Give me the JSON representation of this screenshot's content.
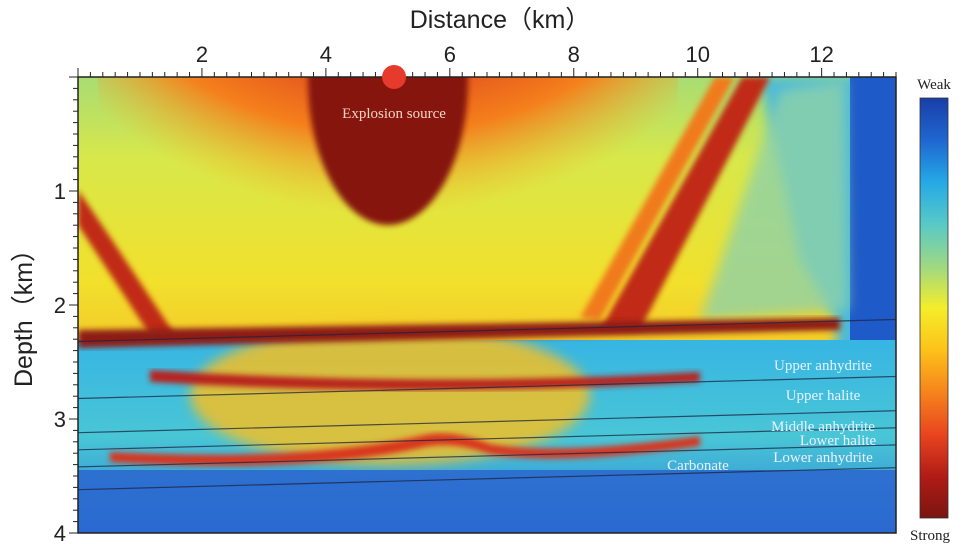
{
  "chart_data": {
    "type": "heatmap",
    "title": "",
    "xlabel": "Distance（km）",
    "ylabel": "Depth（km）",
    "xlim": [
      0,
      13.2
    ],
    "ylim": [
      4,
      0
    ],
    "xticks": [
      2,
      4,
      6,
      8,
      10,
      12
    ],
    "xtick_labels": [
      "2",
      "4",
      "6",
      "8",
      "10",
      "12"
    ],
    "yticks": [
      1,
      2,
      3,
      4
    ],
    "ytick_labels": [
      "1",
      "2",
      "3",
      "4"
    ],
    "colorbar": {
      "top_label": "Weak",
      "bottom_label": "Strong",
      "colors": [
        "#1a3ea8",
        "#1f66d0",
        "#24a9e6",
        "#58c9c6",
        "#9ed884",
        "#f4ee2a",
        "#fcc21a",
        "#f6841c",
        "#e9461f",
        "#b21b17",
        "#7a1510"
      ]
    },
    "source": {
      "label": "Explosion source",
      "x": 5.1,
      "depth": 0,
      "color": "#e53a2c"
    },
    "layers": [
      {
        "name": "Upper anhydrite",
        "boundary_depth": 2.25
      },
      {
        "name": "Upper halite",
        "boundary_depth": 2.75
      },
      {
        "name": "Middle anhydrite",
        "boundary_depth": 3.05
      },
      {
        "name": "Lower halite",
        "boundary_depth": 3.2
      },
      {
        "name": "Lower anhydrite",
        "boundary_depth": 3.35
      },
      {
        "name": "Carbonate",
        "boundary_depth": 3.55
      }
    ]
  }
}
